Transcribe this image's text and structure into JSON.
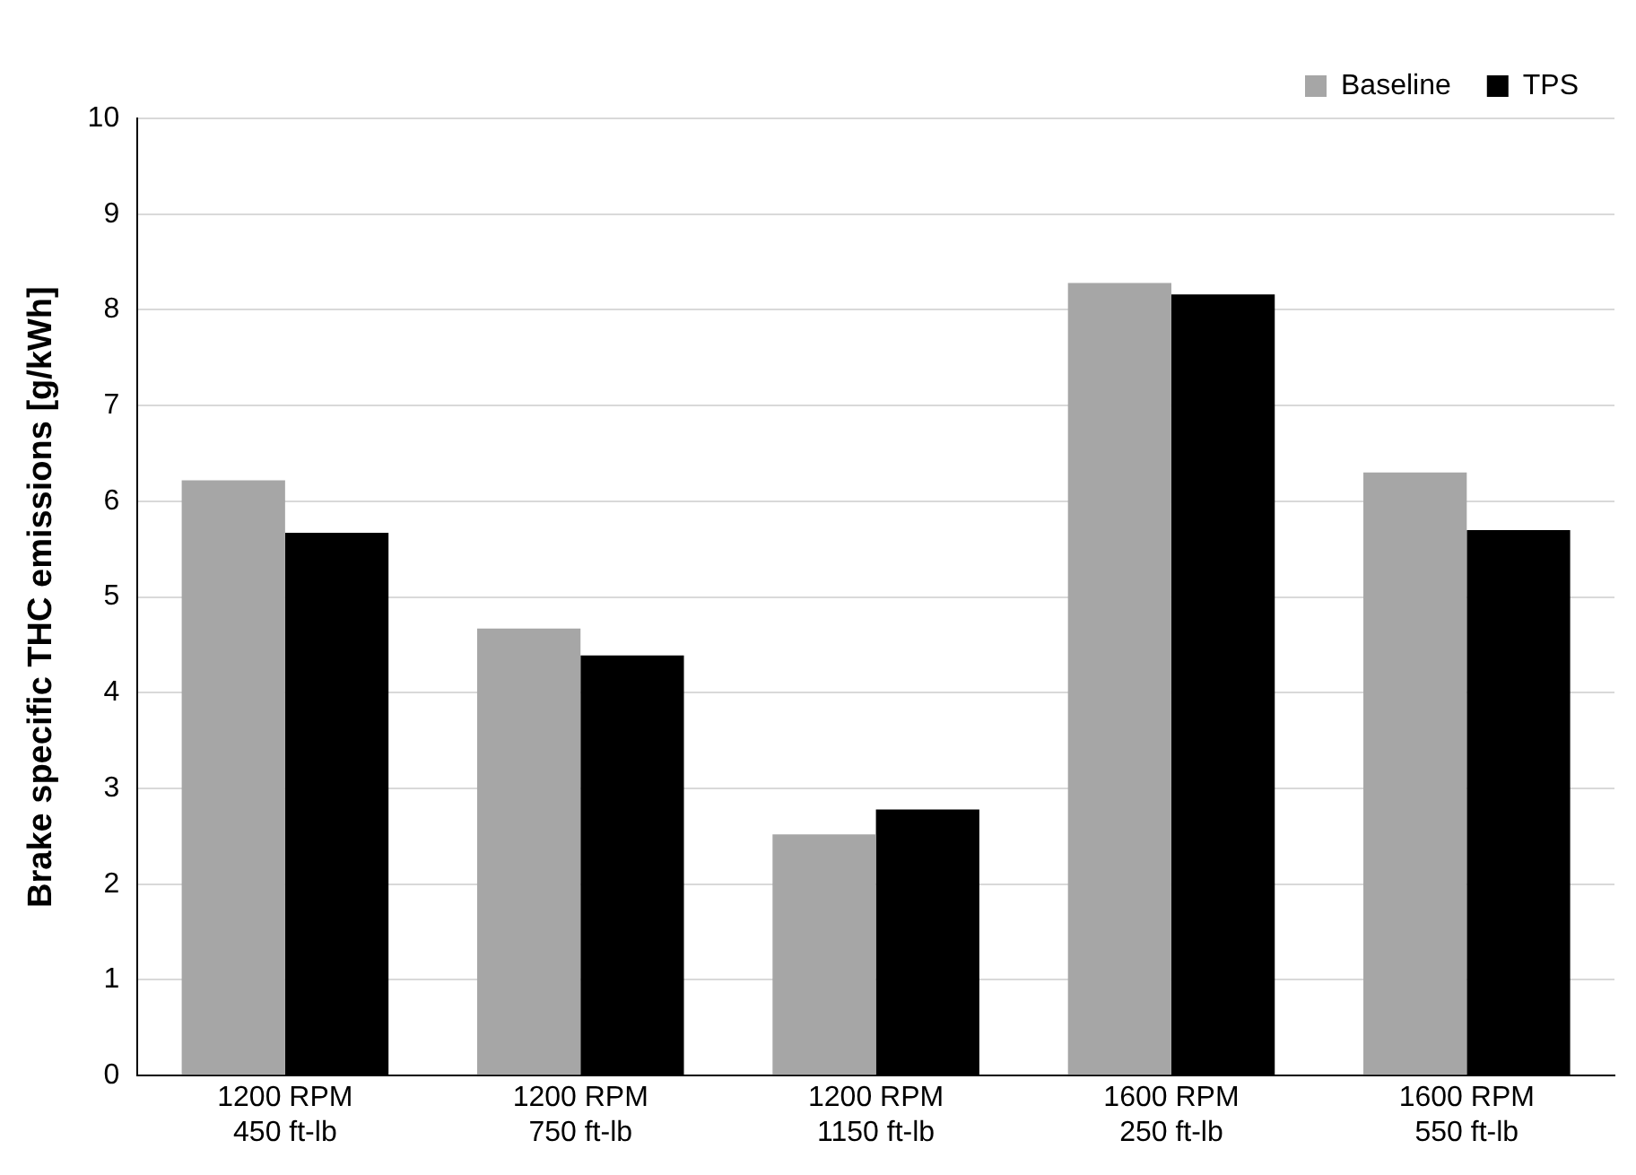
{
  "chart_data": {
    "type": "bar",
    "categories": [
      "1200 RPM\n450 ft-lb",
      "1200 RPM\n750 ft-lb",
      "1200 RPM\n1150 ft-lb",
      "1600 RPM\n250 ft-lb",
      "1600 RPM\n550 ft-lb"
    ],
    "series": [
      {
        "name": "Baseline",
        "color": "#a6a6a6",
        "values": [
          6.22,
          4.67,
          2.52,
          8.28,
          6.3
        ]
      },
      {
        "name": "TPS",
        "color": "#000000",
        "values": [
          5.67,
          4.39,
          2.78,
          8.16,
          5.7
        ]
      }
    ],
    "ylabel": "Brake specific THC emissions [g/kWh]",
    "ylim": [
      0,
      10
    ],
    "yticks": [
      0,
      1,
      2,
      3,
      4,
      5,
      6,
      7,
      8,
      9,
      10
    ],
    "grid": "y",
    "legend": "top right"
  }
}
